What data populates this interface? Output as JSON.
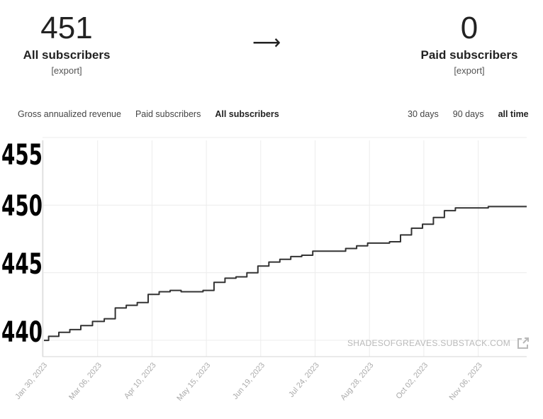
{
  "summary": {
    "all_subscribers": {
      "count": "451",
      "label": "All subscribers",
      "export_label": "[export]"
    },
    "arrow": "⟶",
    "paid_subscribers": {
      "count": "0",
      "label": "Paid subscribers",
      "export_label": "[export]"
    }
  },
  "metric_tabs": [
    {
      "label": "Gross annualized revenue",
      "active": false
    },
    {
      "label": "Paid subscribers",
      "active": false
    },
    {
      "label": "All subscribers",
      "active": true
    }
  ],
  "range_tabs": [
    {
      "label": "30 days",
      "active": false
    },
    {
      "label": "90 days",
      "active": false
    },
    {
      "label": "all time",
      "active": true
    }
  ],
  "watermark": {
    "text": "SHADESOFGREAVES.SUBSTACK.COM",
    "icon": "external-link-icon"
  },
  "colors": {
    "line": "#333333",
    "grid": "#ececec",
    "watermark": "#b9b9b9"
  },
  "chart_data": {
    "type": "line",
    "x_tick_labels": [
      "Jan 30, 2023",
      "Mar 06, 2023",
      "Apr 10, 2023",
      "May 15, 2023",
      "Jun 19, 2023",
      "Jul 24, 2023",
      "Aug 28, 2023",
      "Oct 02, 2023",
      "Nov 06, 2023"
    ],
    "y_tick_labels": [
      "455",
      "450",
      "445",
      "440"
    ],
    "ylim": [
      439,
      455
    ],
    "grid": true,
    "series": [
      {
        "x": [
          "2023-01-30",
          "2023-02-05",
          "2023-02-12",
          "2023-02-19",
          "2023-02-26",
          "2023-03-06",
          "2023-03-13",
          "2023-03-20",
          "2023-03-27",
          "2023-04-03",
          "2023-04-10",
          "2023-04-17",
          "2023-04-24",
          "2023-05-01",
          "2023-05-08",
          "2023-05-15",
          "2023-05-22",
          "2023-05-29",
          "2023-06-05",
          "2023-06-12",
          "2023-06-19",
          "2023-06-26",
          "2023-07-03",
          "2023-07-10",
          "2023-07-17",
          "2023-07-24",
          "2023-07-31",
          "2023-08-07",
          "2023-08-14",
          "2023-08-21",
          "2023-08-28",
          "2023-09-04",
          "2023-09-11",
          "2023-09-18",
          "2023-09-25",
          "2023-10-02",
          "2023-10-09",
          "2023-10-16",
          "2023-10-23",
          "2023-10-30",
          "2023-11-06",
          "2023-11-13",
          "2023-11-20",
          "2023-11-27",
          "2023-12-04"
        ],
        "y": [
          440.2,
          440.5,
          440.8,
          441.0,
          441.3,
          441.6,
          441.8,
          442.6,
          442.8,
          443.0,
          443.6,
          443.8,
          443.9,
          443.8,
          443.8,
          443.9,
          444.5,
          444.8,
          444.9,
          445.2,
          445.7,
          446.0,
          446.2,
          446.4,
          446.5,
          446.8,
          446.8,
          446.8,
          447.0,
          447.2,
          447.4,
          447.4,
          447.5,
          448.0,
          448.5,
          448.8,
          449.3,
          449.8,
          450.0,
          450.0,
          450.0,
          450.1,
          450.1,
          450.1,
          450.1
        ]
      }
    ]
  }
}
